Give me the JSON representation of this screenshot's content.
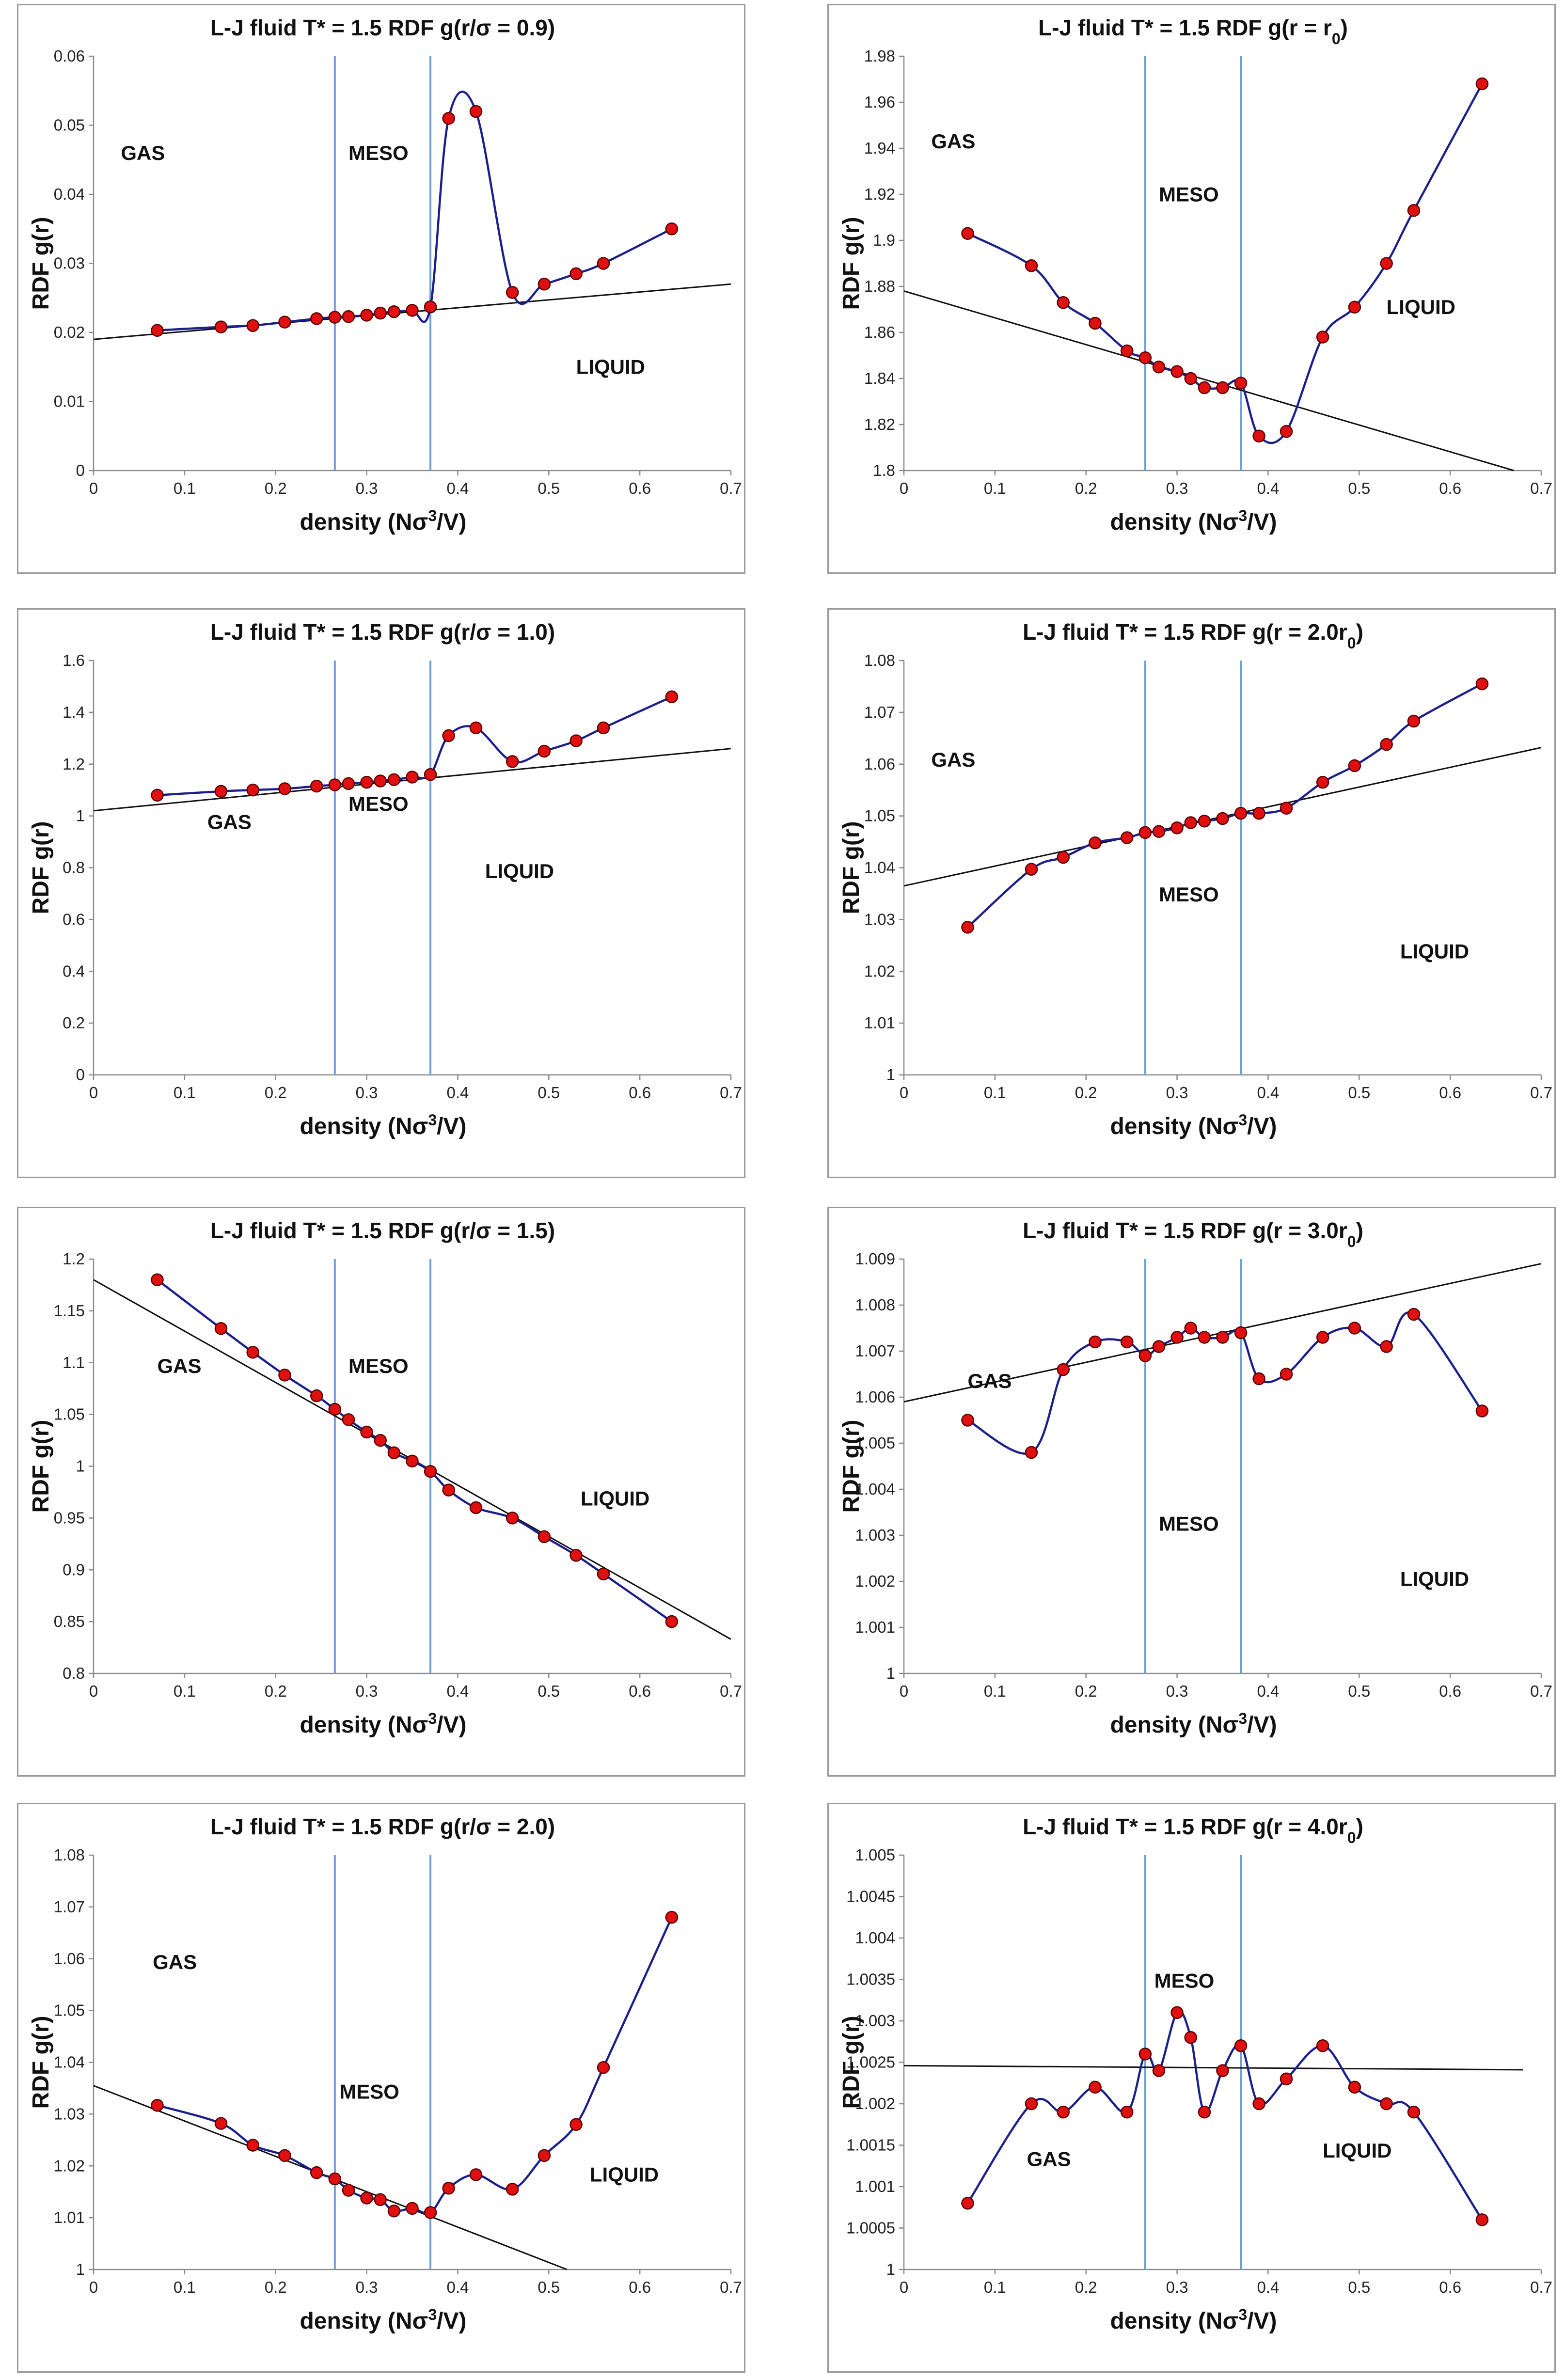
{
  "chart_data": [
    {
      "type": "line",
      "title_main": "L-J fluid T* = 1.5 RDF g(r/σ = 0.9)",
      "title_sub": "",
      "title_tail": "",
      "xlabel_main": "density (Nσ",
      "xlabel_sup": "3",
      "xlabel_tail": "/V)",
      "ylabel": "RDF g(r)",
      "xlim": [
        0,
        0.7
      ],
      "ylim": [
        0,
        0.06
      ],
      "xticks": [
        "0",
        "0.1",
        "0.2",
        "0.3",
        "0.4",
        "0.5",
        "0.6",
        "0.7"
      ],
      "yticks": [
        "0",
        "0.01",
        "0.02",
        "0.03",
        "0.04",
        "0.05",
        "0.06"
      ],
      "boundaries": [
        0.265,
        0.37
      ],
      "trendline": [
        [
          0,
          0.019
        ],
        [
          0.7,
          0.027
        ]
      ],
      "regions": [
        {
          "label": "GAS",
          "x": 0.03,
          "y": 0.045
        },
        {
          "label": "MESO",
          "x": 0.28,
          "y": 0.045
        },
        {
          "label": "LIQUID",
          "x": 0.53,
          "y": 0.014
        }
      ],
      "x": [
        0.07,
        0.14,
        0.175,
        0.21,
        0.245,
        0.265,
        0.28,
        0.3,
        0.315,
        0.33,
        0.35,
        0.37,
        0.39,
        0.42,
        0.46,
        0.495,
        0.53,
        0.56,
        0.635
      ],
      "y": [
        0.0203,
        0.0208,
        0.021,
        0.0215,
        0.022,
        0.0222,
        0.0223,
        0.0225,
        0.0228,
        0.023,
        0.0232,
        0.0237,
        0.051,
        0.052,
        0.0258,
        0.027,
        0.0285,
        0.03,
        0.035
      ]
    },
    {
      "type": "line",
      "title_main": "L-J fluid T* = 1.5 RDF g(r = r",
      "title_sub": "0",
      "title_tail": ")",
      "xlabel_main": "density (Nσ",
      "xlabel_sup": "3",
      "xlabel_tail": "/V)",
      "ylabel": "RDF g(r)",
      "xlim": [
        0,
        0.7
      ],
      "ylim": [
        1.8,
        1.98
      ],
      "xticks": [
        "0",
        "0.1",
        "0.2",
        "0.3",
        "0.4",
        "0.5",
        "0.6",
        "0.7"
      ],
      "yticks": [
        "1.8",
        "1.82",
        "1.84",
        "1.86",
        "1.88",
        "1.9",
        "1.92",
        "1.94",
        "1.96",
        "1.98"
      ],
      "boundaries": [
        0.265,
        0.37
      ],
      "trendline": [
        [
          0,
          1.878
        ],
        [
          0.67,
          1.8
        ]
      ],
      "regions": [
        {
          "label": "GAS",
          "x": 0.03,
          "y": 1.94
        },
        {
          "label": "MESO",
          "x": 0.28,
          "y": 1.917
        },
        {
          "label": "LIQUID",
          "x": 0.53,
          "y": 1.868
        }
      ],
      "x": [
        0.07,
        0.14,
        0.175,
        0.21,
        0.245,
        0.265,
        0.28,
        0.3,
        0.315,
        0.33,
        0.35,
        0.37,
        0.39,
        0.42,
        0.46,
        0.495,
        0.53,
        0.56,
        0.635
      ],
      "y": [
        1.903,
        1.889,
        1.873,
        1.864,
        1.852,
        1.849,
        1.845,
        1.843,
        1.84,
        1.836,
        1.836,
        1.838,
        1.815,
        1.817,
        1.858,
        1.871,
        1.89,
        1.913,
        1.968
      ]
    },
    {
      "type": "line",
      "title_main": "L-J fluid T* = 1.5 RDF g(r/σ = 1.0)",
      "title_sub": "",
      "title_tail": "",
      "xlabel_main": "density (Nσ",
      "xlabel_sup": "3",
      "xlabel_tail": "/V)",
      "ylabel": "RDF g(r)",
      "xlim": [
        0,
        0.7
      ],
      "ylim": [
        0,
        1.6
      ],
      "xticks": [
        "0",
        "0.1",
        "0.2",
        "0.3",
        "0.4",
        "0.5",
        "0.6",
        "0.7"
      ],
      "yticks": [
        "0",
        "0.2",
        "0.4",
        "0.6",
        "0.8",
        "1",
        "1.2",
        "1.4",
        "1.6"
      ],
      "boundaries": [
        0.265,
        0.37
      ],
      "trendline": [
        [
          0,
          1.02
        ],
        [
          0.7,
          1.26
        ]
      ],
      "regions": [
        {
          "label": "GAS",
          "x": 0.125,
          "y": 0.95
        },
        {
          "label": "MESO",
          "x": 0.28,
          "y": 1.02
        },
        {
          "label": "LIQUID",
          "x": 0.43,
          "y": 0.76
        }
      ],
      "x": [
        0.07,
        0.14,
        0.175,
        0.21,
        0.245,
        0.265,
        0.28,
        0.3,
        0.315,
        0.33,
        0.35,
        0.37,
        0.39,
        0.42,
        0.46,
        0.495,
        0.53,
        0.56,
        0.635
      ],
      "y": [
        1.08,
        1.095,
        1.1,
        1.105,
        1.115,
        1.12,
        1.125,
        1.13,
        1.135,
        1.14,
        1.15,
        1.16,
        1.31,
        1.34,
        1.21,
        1.25,
        1.29,
        1.34,
        1.46
      ]
    },
    {
      "type": "line",
      "title_main": "L-J fluid T* = 1.5 RDF g(r = 2.0r",
      "title_sub": "0",
      "title_tail": ")",
      "xlabel_main": "density (Nσ",
      "xlabel_sup": "3",
      "xlabel_tail": "/V)",
      "ylabel": "RDF g(r)",
      "xlim": [
        0,
        0.7
      ],
      "ylim": [
        1,
        1.08
      ],
      "xticks": [
        "0",
        "0.1",
        "0.2",
        "0.3",
        "0.4",
        "0.5",
        "0.6",
        "0.7"
      ],
      "yticks": [
        "1",
        "1.01",
        "1.02",
        "1.03",
        "1.04",
        "1.05",
        "1.06",
        "1.07",
        "1.08"
      ],
      "boundaries": [
        0.265,
        0.37
      ],
      "trendline": [
        [
          0,
          1.0365
        ],
        [
          0.7,
          1.0632
        ]
      ],
      "regions": [
        {
          "label": "GAS",
          "x": 0.03,
          "y": 1.0595
        },
        {
          "label": "MESO",
          "x": 0.28,
          "y": 1.0335
        },
        {
          "label": "LIQUID",
          "x": 0.545,
          "y": 1.0225
        }
      ],
      "x": [
        0.07,
        0.14,
        0.175,
        0.21,
        0.245,
        0.265,
        0.28,
        0.3,
        0.315,
        0.33,
        0.35,
        0.37,
        0.39,
        0.42,
        0.46,
        0.495,
        0.53,
        0.56,
        0.635
      ],
      "y": [
        1.0285,
        1.0397,
        1.042,
        1.0448,
        1.0458,
        1.0468,
        1.047,
        1.0477,
        1.0487,
        1.049,
        1.0495,
        1.0505,
        1.0505,
        1.0515,
        1.0565,
        1.0597,
        1.0638,
        1.0683,
        1.0755
      ]
    },
    {
      "type": "line",
      "title_main": "L-J fluid T* = 1.5 RDF g(r/σ = 1.5)",
      "title_sub": "",
      "title_tail": "",
      "xlabel_main": "density (Nσ",
      "xlabel_sup": "3",
      "xlabel_tail": "/V)",
      "ylabel": "RDF g(r)",
      "xlim": [
        0,
        0.7
      ],
      "ylim": [
        0.8,
        1.2
      ],
      "xticks": [
        "0",
        "0.1",
        "0.2",
        "0.3",
        "0.4",
        "0.5",
        "0.6",
        "0.7"
      ],
      "yticks": [
        "0.8",
        "0.85",
        "0.9",
        "0.95",
        "1",
        "1.05",
        "1.1",
        "1.15",
        "1.2"
      ],
      "boundaries": [
        0.265,
        0.37
      ],
      "trendline": [
        [
          0,
          1.18
        ],
        [
          0.7,
          0.833
        ]
      ],
      "regions": [
        {
          "label": "GAS",
          "x": 0.07,
          "y": 1.09
        },
        {
          "label": "MESO",
          "x": 0.28,
          "y": 1.09
        },
        {
          "label": "LIQUID",
          "x": 0.535,
          "y": 0.962
        }
      ],
      "x": [
        0.07,
        0.14,
        0.175,
        0.21,
        0.245,
        0.265,
        0.28,
        0.3,
        0.315,
        0.33,
        0.35,
        0.37,
        0.39,
        0.42,
        0.46,
        0.495,
        0.53,
        0.56,
        0.635
      ],
      "y": [
        1.18,
        1.133,
        1.11,
        1.088,
        1.068,
        1.055,
        1.045,
        1.033,
        1.025,
        1.013,
        1.005,
        0.995,
        0.977,
        0.96,
        0.95,
        0.932,
        0.914,
        0.896,
        0.85
      ]
    },
    {
      "type": "line",
      "title_main": "L-J fluid T* = 1.5 RDF g(r = 3.0r",
      "title_sub": "0",
      "title_tail": ")",
      "xlabel_main": "density (Nσ",
      "xlabel_sup": "3",
      "xlabel_tail": "/V)",
      "ylabel": "RDF g(r)",
      "xlim": [
        0,
        0.7
      ],
      "ylim": [
        1,
        1.009
      ],
      "xticks": [
        "0",
        "0.1",
        "0.2",
        "0.3",
        "0.4",
        "0.5",
        "0.6",
        "0.7"
      ],
      "yticks": [
        "1",
        "1.001",
        "1.002",
        "1.003",
        "1.004",
        "1.005",
        "1.006",
        "1.007",
        "1.008",
        "1.009"
      ],
      "boundaries": [
        0.265,
        0.37
      ],
      "trendline": [
        [
          0,
          1.0059
        ],
        [
          0.7,
          1.0089
        ]
      ],
      "regions": [
        {
          "label": "GAS",
          "x": 0.07,
          "y": 1.0062
        },
        {
          "label": "MESO",
          "x": 0.28,
          "y": 1.0031
        },
        {
          "label": "LIQUID",
          "x": 0.545,
          "y": 1.0019
        }
      ],
      "x": [
        0.07,
        0.14,
        0.175,
        0.21,
        0.245,
        0.265,
        0.28,
        0.3,
        0.315,
        0.33,
        0.35,
        0.37,
        0.39,
        0.42,
        0.46,
        0.495,
        0.53,
        0.56,
        0.635
      ],
      "y": [
        1.0055,
        1.0048,
        1.0066,
        1.0072,
        1.0072,
        1.0069,
        1.0071,
        1.0073,
        1.0075,
        1.0073,
        1.0073,
        1.0074,
        1.0064,
        1.0065,
        1.0073,
        1.0075,
        1.0071,
        1.0078,
        1.0057
      ]
    },
    {
      "type": "line",
      "title_main": "L-J fluid T* = 1.5 RDF g(r/σ = 2.0)",
      "title_sub": "",
      "title_tail": "",
      "xlabel_main": "density (Nσ",
      "xlabel_sup": "3",
      "xlabel_tail": "/V)",
      "ylabel": "RDF g(r)",
      "xlim": [
        0,
        0.7
      ],
      "ylim": [
        1,
        1.08
      ],
      "xticks": [
        "0",
        "0.1",
        "0.2",
        "0.3",
        "0.4",
        "0.5",
        "0.6",
        "0.7"
      ],
      "yticks": [
        "1",
        "1.01",
        "1.02",
        "1.03",
        "1.04",
        "1.05",
        "1.06",
        "1.07",
        "1.08"
      ],
      "boundaries": [
        0.265,
        0.37
      ],
      "trendline": [
        [
          0,
          1.0355
        ],
        [
          0.52,
          1
        ]
      ],
      "regions": [
        {
          "label": "GAS",
          "x": 0.065,
          "y": 1.058
        },
        {
          "label": "MESO",
          "x": 0.27,
          "y": 1.033
        },
        {
          "label": "LIQUID",
          "x": 0.545,
          "y": 1.017
        }
      ],
      "x": [
        0.07,
        0.14,
        0.175,
        0.21,
        0.245,
        0.265,
        0.28,
        0.3,
        0.315,
        0.33,
        0.35,
        0.37,
        0.39,
        0.42,
        0.46,
        0.495,
        0.53,
        0.56,
        0.635
      ],
      "y": [
        1.0317,
        1.0282,
        1.024,
        1.022,
        1.0187,
        1.0175,
        1.0153,
        1.0138,
        1.0135,
        1.0113,
        1.0118,
        1.011,
        1.0157,
        1.0183,
        1.0155,
        1.022,
        1.028,
        1.039,
        1.068
      ]
    },
    {
      "type": "line",
      "title_main": "L-J fluid T* = 1.5 RDF g(r = 4.0r",
      "title_sub": "0",
      "title_tail": ")",
      "xlabel_main": "density (Nσ",
      "xlabel_sup": "3",
      "xlabel_tail": "/V)",
      "ylabel": "RDF g(r)",
      "xlim": [
        0,
        0.7
      ],
      "ylim": [
        1,
        1.005
      ],
      "xticks": [
        "0",
        "0.1",
        "0.2",
        "0.3",
        "0.4",
        "0.5",
        "0.6",
        "0.7"
      ],
      "yticks": [
        "1",
        "1.0005",
        "1.001",
        "1.0015",
        "1.002",
        "1.0025",
        "1.003",
        "1.0035",
        "1.004",
        "1.0045",
        "1.005"
      ],
      "boundaries": [
        0.265,
        0.37
      ],
      "trendline": [
        [
          0,
          1.00246
        ],
        [
          0.68,
          1.00241
        ]
      ],
      "regions": [
        {
          "label": "GAS",
          "x": 0.135,
          "y": 1.00125
        },
        {
          "label": "MESO",
          "x": 0.275,
          "y": 1.0034
        },
        {
          "label": "LIQUID",
          "x": 0.46,
          "y": 1.00135
        }
      ],
      "x": [
        0.07,
        0.14,
        0.175,
        0.21,
        0.245,
        0.265,
        0.28,
        0.3,
        0.315,
        0.33,
        0.35,
        0.37,
        0.39,
        0.42,
        0.46,
        0.495,
        0.53,
        0.56,
        0.635
      ],
      "y": [
        1.0008,
        1.002,
        1.0019,
        1.0022,
        1.0019,
        1.0026,
        1.0024,
        1.0031,
        1.0028,
        1.0019,
        1.0024,
        1.0027,
        1.002,
        1.0023,
        1.0027,
        1.0022,
        1.002,
        1.0019,
        1.0006
      ]
    }
  ],
  "colors": {
    "curve": "#1a1f8c",
    "marker_fill": "#e01010",
    "marker_stroke": "#5a0000",
    "boundary": "#6f9fd6",
    "trendline": "#111111",
    "axis": "#8a8a8a"
  }
}
